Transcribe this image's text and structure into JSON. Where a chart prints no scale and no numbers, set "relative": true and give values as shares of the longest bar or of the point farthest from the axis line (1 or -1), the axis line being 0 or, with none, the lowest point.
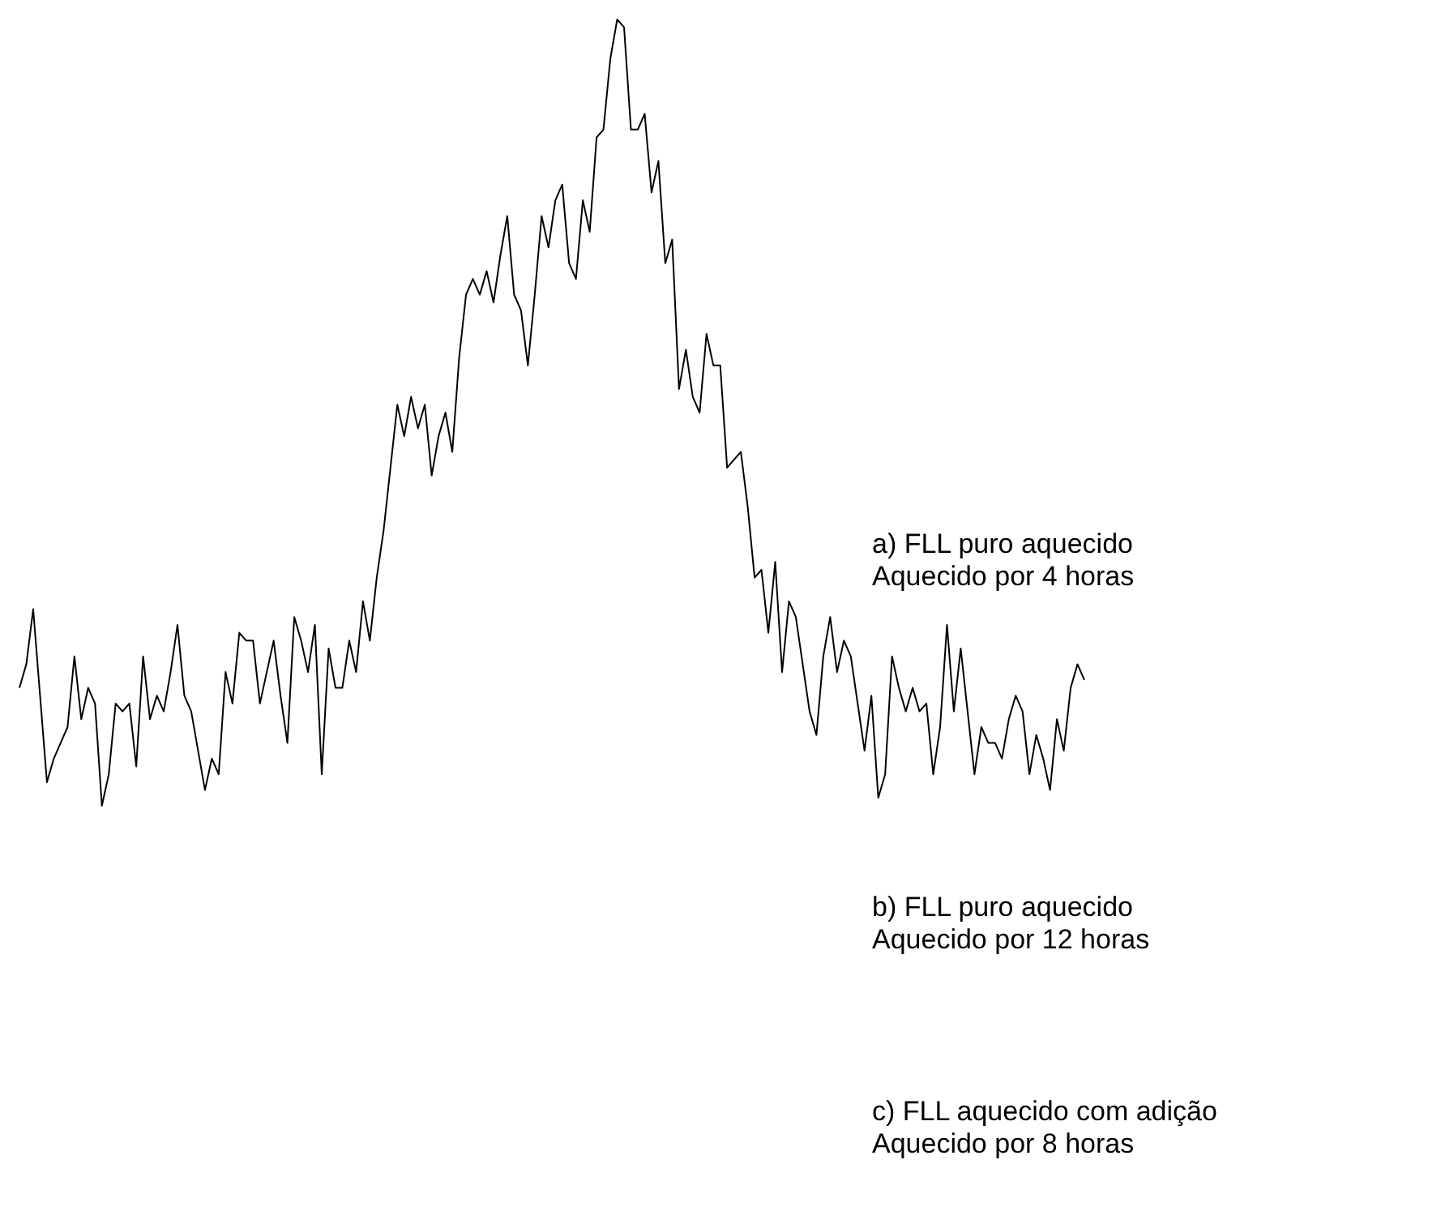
{
  "chart_data": {
    "type": "line",
    "relative": true,
    "legend": false,
    "categories": [
      null,
      null,
      null,
      null,
      null,
      null,
      null,
      null,
      null,
      null,
      null,
      null,
      null,
      null,
      null,
      null,
      null,
      null,
      null,
      null,
      null,
      null,
      null,
      null,
      null,
      null,
      null,
      null,
      null,
      null,
      null,
      null,
      null,
      null,
      null,
      null,
      null,
      null,
      null,
      null,
      null,
      null,
      null,
      null,
      null,
      null,
      null,
      null,
      null,
      null,
      null,
      null,
      null,
      null,
      null,
      null,
      null,
      null,
      null,
      null,
      null,
      null,
      null,
      null,
      null,
      null,
      null,
      null,
      null,
      null,
      null,
      null,
      null,
      null,
      null,
      null,
      null,
      null,
      null,
      null,
      null,
      null,
      null,
      null,
      null,
      null,
      null,
      null,
      null,
      null,
      null,
      null,
      null,
      null,
      null,
      null,
      null,
      null,
      null,
      null,
      null,
      null,
      null,
      null,
      null,
      null,
      null,
      null,
      null,
      null,
      null,
      null,
      null,
      null,
      null,
      null,
      null,
      null,
      null,
      null,
      null,
      null,
      null,
      null,
      null,
      null,
      null,
      null,
      null,
      null,
      null,
      null,
      null,
      null,
      null,
      null,
      null,
      null,
      null,
      null,
      null,
      null,
      null,
      null,
      null,
      null,
      null,
      null,
      null,
      null,
      null,
      null,
      null,
      null,
      null,
      null
    ],
    "series": [
      {
        "color": "#000000",
        "values": [
          0.15,
          0.18,
          0.25,
          0.14,
          0.03,
          0.06,
          0.08,
          0.1,
          0.19,
          0.11,
          0.15,
          0.13,
          0,
          0.04,
          0.13,
          0.12,
          0.13,
          0.05,
          0.19,
          0.11,
          0.14,
          0.12,
          0.17,
          0.23,
          0.14,
          0.12,
          0.07,
          0.02,
          0.06,
          0.04,
          0.17,
          0.13,
          0.22,
          0.21,
          0.21,
          0.13,
          0.17,
          0.21,
          0.14,
          0.08,
          0.24,
          0.21,
          0.17,
          0.23,
          0.04,
          0.2,
          0.15,
          0.15,
          0.21,
          0.17,
          0.26,
          0.21,
          0.29,
          0.35,
          0.43,
          0.51,
          0.47,
          0.52,
          0.48,
          0.51,
          0.42,
          0.47,
          0.5,
          0.45,
          0.57,
          0.65,
          0.67,
          0.65,
          0.68,
          0.64,
          0.7,
          0.75,
          0.65,
          0.63,
          0.56,
          0.65,
          0.75,
          0.71,
          0.77,
          0.79,
          0.69,
          0.67,
          0.77,
          0.73,
          0.85,
          0.86,
          0.95,
          1,
          0.99,
          0.86,
          0.86,
          0.88,
          0.78,
          0.82,
          0.69,
          0.72,
          0.53,
          0.58,
          0.52,
          0.5,
          0.6,
          0.56,
          0.56,
          0.43,
          0.44,
          0.45,
          0.38,
          0.29,
          0.3,
          0.22,
          0.31,
          0.17,
          0.26,
          0.24,
          0.18,
          0.12,
          0.09,
          0.19,
          0.24,
          0.17,
          0.21,
          0.19,
          0.13,
          0.07,
          0.14,
          0.01,
          0.04,
          0.19,
          0.15,
          0.12,
          0.15,
          0.12,
          0.13,
          0.04,
          0.1,
          0.23,
          0.12,
          0.2,
          0.12,
          0.04,
          0.1,
          0.08,
          0.08,
          0.06,
          0.11,
          0.14,
          0.12,
          0.04,
          0.09,
          0.06,
          0.02,
          0.11,
          0.07,
          0.15,
          0.18,
          0.16
        ]
      }
    ],
    "annotations": [
      "a) FLL puro aquecido\nAquecido por 4 horas",
      "b) FLL puro aquecido\nAquecido por 12 horas",
      "c) FLL aquecido com adição\nAquecido por 8 horas"
    ]
  }
}
